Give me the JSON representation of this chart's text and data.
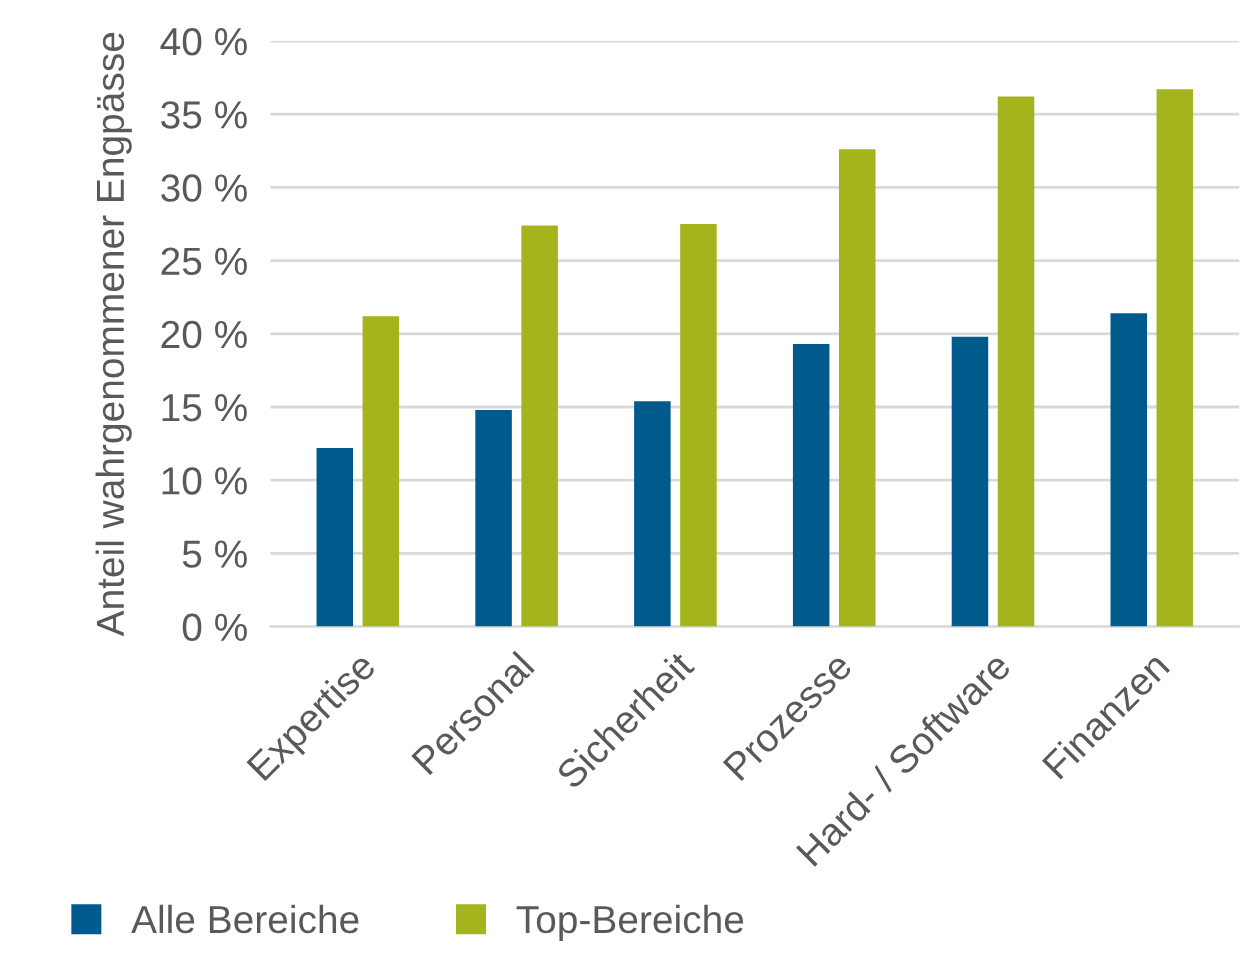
{
  "chart_data": {
    "type": "bar",
    "ylabel": "Anteil wahrgenommener Engpässe",
    "categories": [
      "Expertise",
      "Personal",
      "Sicherheit",
      "Prozesse",
      "Hard- / Software",
      "Finanzen"
    ],
    "series": [
      {
        "name": "Alle Bereiche",
        "color": "#005a8c",
        "values": [
          12.2,
          14.8,
          15.4,
          19.3,
          19.8,
          21.4
        ]
      },
      {
        "name": "Top-Bereiche",
        "color": "#a4b41c",
        "values": [
          21.2,
          27.4,
          27.5,
          32.6,
          36.2,
          36.7
        ]
      }
    ],
    "ylim": [
      0,
      40
    ],
    "yticks": [
      {
        "value": 0,
        "label": "0 %"
      },
      {
        "value": 5,
        "label": "5 %"
      },
      {
        "value": 10,
        "label": "10 %"
      },
      {
        "value": 15,
        "label": "15 %"
      },
      {
        "value": 20,
        "label": "20 %"
      },
      {
        "value": 25,
        "label": "25 %"
      },
      {
        "value": 30,
        "label": "30 %"
      },
      {
        "value": 35,
        "label": "35 %"
      },
      {
        "value": 40,
        "label": "40 %"
      }
    ],
    "grid": "y",
    "legend": "bottom left"
  }
}
